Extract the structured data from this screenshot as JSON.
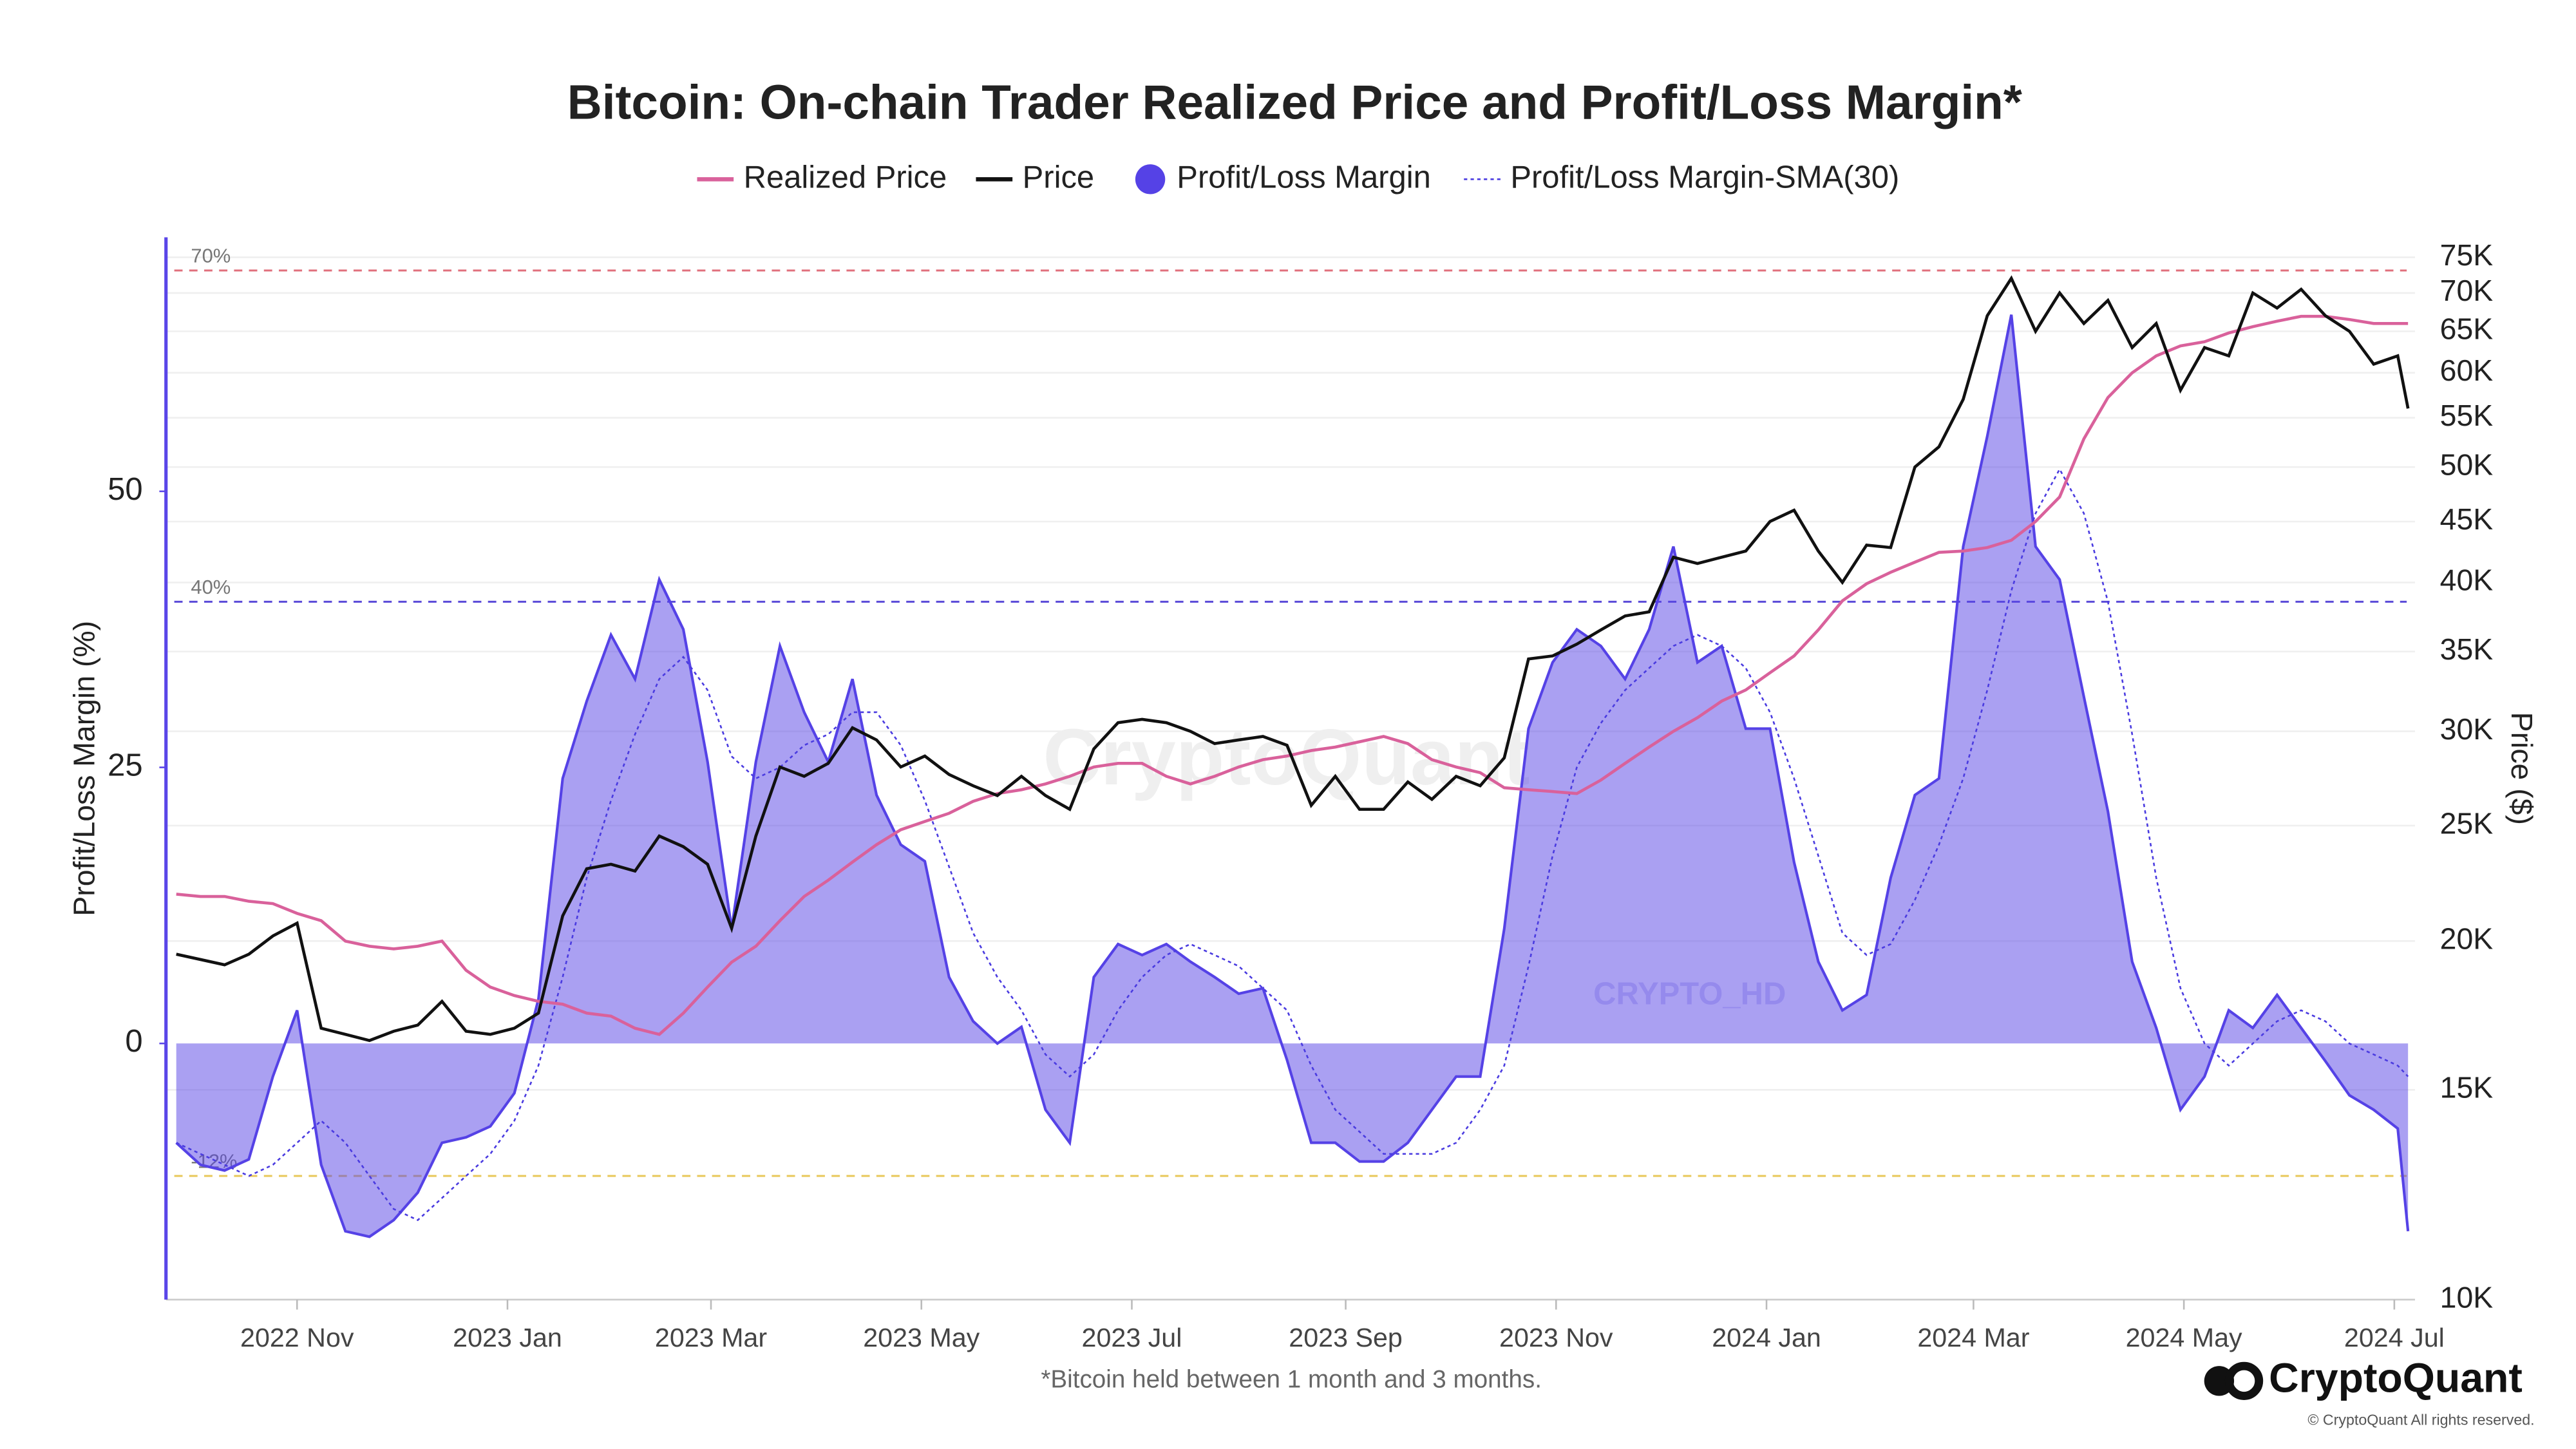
{
  "chart_data": {
    "type": "line",
    "title": "Bitcoin: On-chain Trader Realized Price and Profit/Loss Margin*",
    "footnote": "*Bitcoin held between 1 month and 3 months.",
    "brand": "CryptoQuant",
    "copyright": "© CryptoQuant All rights reserved.",
    "watermarks": [
      "CryptoQuant",
      "CRYPTO_HD"
    ],
    "ylabel": "Profit/Loss Margin (%)",
    "y2label": "Price ($)",
    "ylim": [
      -23.2,
      73
    ],
    "yticks": [
      0,
      25,
      50
    ],
    "y2lim": [
      10000,
      77950
    ],
    "y2log": true,
    "y2ticks": [
      {
        "value": 10000,
        "label": "10K"
      },
      {
        "value": 15000,
        "label": "15K"
      },
      {
        "value": 20000,
        "label": "20K"
      },
      {
        "value": 25000,
        "label": "25K"
      },
      {
        "value": 30000,
        "label": "30K"
      },
      {
        "value": 35000,
        "label": "35K"
      },
      {
        "value": 40000,
        "label": "40K"
      },
      {
        "value": 45000,
        "label": "45K"
      },
      {
        "value": 50000,
        "label": "50K"
      },
      {
        "value": 55000,
        "label": "55K"
      },
      {
        "value": 60000,
        "label": "60K"
      },
      {
        "value": 65000,
        "label": "65K"
      },
      {
        "value": 70000,
        "label": "70K"
      },
      {
        "value": 75000,
        "label": "75K"
      }
    ],
    "grid": true,
    "xlim": [
      "2022-09-24",
      "2024-07-07"
    ],
    "xticks": [
      {
        "value": "2022-11",
        "label": "2022 Nov"
      },
      {
        "value": "2023-01",
        "label": "2023 Jan"
      },
      {
        "value": "2023-03",
        "label": "2023 Mar"
      },
      {
        "value": "2023-05",
        "label": "2023 May"
      },
      {
        "value": "2023-07",
        "label": "2023 Jul"
      },
      {
        "value": "2023-09",
        "label": "2023 Sep"
      },
      {
        "value": "2023-11",
        "label": "2023 Nov"
      },
      {
        "value": "2024-01",
        "label": "2024 Jan"
      },
      {
        "value": "2024-03",
        "label": "2024 Mar"
      },
      {
        "value": "2024-05",
        "label": "2024 May"
      },
      {
        "value": "2024-07",
        "label": "2024 Jul"
      }
    ],
    "ref_lines": [
      {
        "value": 70,
        "label": "70%",
        "color": "#e0707c"
      },
      {
        "value": 40,
        "label": "40%",
        "color": "#5a4ad8"
      },
      {
        "value": -12,
        "label": "-12%",
        "color": "#e8c85a"
      }
    ],
    "x": [
      "2022-09-27",
      "2022-10-04",
      "2022-10-11",
      "2022-10-18",
      "2022-10-25",
      "2022-11-01",
      "2022-11-08",
      "2022-11-15",
      "2022-11-22",
      "2022-11-29",
      "2022-12-06",
      "2022-12-13",
      "2022-12-20",
      "2022-12-27",
      "2023-01-03",
      "2023-01-10",
      "2023-01-17",
      "2023-01-24",
      "2023-01-31",
      "2023-02-07",
      "2023-02-14",
      "2023-02-21",
      "2023-02-28",
      "2023-03-07",
      "2023-03-14",
      "2023-03-21",
      "2023-03-28",
      "2023-04-04",
      "2023-04-11",
      "2023-04-18",
      "2023-04-25",
      "2023-05-02",
      "2023-05-09",
      "2023-05-16",
      "2023-05-23",
      "2023-05-30",
      "2023-06-06",
      "2023-06-13",
      "2023-06-20",
      "2023-06-27",
      "2023-07-04",
      "2023-07-11",
      "2023-07-18",
      "2023-07-25",
      "2023-08-01",
      "2023-08-08",
      "2023-08-15",
      "2023-08-22",
      "2023-08-29",
      "2023-09-05",
      "2023-09-12",
      "2023-09-19",
      "2023-09-26",
      "2023-10-03",
      "2023-10-10",
      "2023-10-17",
      "2023-10-24",
      "2023-10-31",
      "2023-11-07",
      "2023-11-14",
      "2023-11-21",
      "2023-11-28",
      "2023-12-05",
      "2023-12-12",
      "2023-12-19",
      "2023-12-26",
      "2024-01-02",
      "2024-01-09",
      "2024-01-16",
      "2024-01-23",
      "2024-01-30",
      "2024-02-06",
      "2024-02-13",
      "2024-02-20",
      "2024-02-27",
      "2024-03-05",
      "2024-03-12",
      "2024-03-19",
      "2024-03-26",
      "2024-04-02",
      "2024-04-09",
      "2024-04-16",
      "2024-04-23",
      "2024-04-30",
      "2024-05-07",
      "2024-05-14",
      "2024-05-21",
      "2024-05-28",
      "2024-06-04",
      "2024-06-11",
      "2024-06-18",
      "2024-06-25",
      "2024-07-02",
      "2024-07-05"
    ],
    "series": [
      {
        "name": "Realized Price",
        "color": "#d9619b",
        "axis": "y2",
        "kind": "line",
        "values": [
          21900,
          21800,
          21800,
          21600,
          21500,
          21100,
          20800,
          20000,
          19800,
          19700,
          19800,
          20000,
          18900,
          18300,
          18000,
          17800,
          17700,
          17400,
          17300,
          16900,
          16700,
          17400,
          18300,
          19200,
          19800,
          20800,
          21800,
          22500,
          23300,
          24100,
          24800,
          25200,
          25600,
          26200,
          26600,
          26800,
          27100,
          27500,
          28000,
          28200,
          28200,
          27500,
          27100,
          27500,
          28000,
          28400,
          28600,
          28900,
          29100,
          29400,
          29700,
          29300,
          28400,
          28000,
          27700,
          26900,
          26800,
          26700,
          26600,
          27300,
          28200,
          29100,
          30000,
          30800,
          31800,
          32500,
          33600,
          34700,
          36500,
          38600,
          39900,
          40800,
          41600,
          42400,
          42500,
          42800,
          43400,
          45000,
          47200,
          52800,
          57200,
          60000,
          62000,
          63200,
          63700,
          64800,
          65600,
          66300,
          66900,
          66900,
          66500,
          66000,
          66000,
          66000
        ]
      },
      {
        "name": "Price",
        "color": "#111111",
        "axis": "y2",
        "kind": "line",
        "values": [
          19500,
          19300,
          19100,
          19500,
          20200,
          20700,
          16900,
          16700,
          16500,
          16800,
          17000,
          17800,
          16800,
          16700,
          16900,
          17400,
          21000,
          23000,
          23200,
          22900,
          24500,
          24000,
          23200,
          20500,
          24500,
          28000,
          27500,
          28200,
          30200,
          29500,
          28000,
          28600,
          27600,
          27000,
          26500,
          27500,
          26500,
          25800,
          29000,
          30500,
          30700,
          30500,
          30000,
          29300,
          29500,
          29700,
          29200,
          26000,
          27500,
          25800,
          25800,
          27200,
          26300,
          27500,
          27000,
          28500,
          34500,
          34700,
          35500,
          36500,
          37500,
          37800,
          42000,
          41500,
          42000,
          42500,
          45000,
          46000,
          42500,
          40000,
          43000,
          42800,
          50000,
          52000,
          57000,
          67000,
          72000,
          65000,
          70000,
          66000,
          69000,
          63000,
          66000,
          58000,
          63000,
          62000,
          70000,
          68000,
          70500,
          67000,
          65000,
          61000,
          62000,
          56000
        ]
      },
      {
        "name": "Profit/Loss Margin",
        "color": "#5542e6",
        "axis": "y",
        "kind": "area",
        "values": [
          -9,
          -11,
          -11.5,
          -10.5,
          -3,
          3,
          -11,
          -17,
          -17.5,
          -16,
          -13.5,
          -9,
          -8.5,
          -7.5,
          -4.5,
          4,
          24,
          31,
          37,
          33,
          42,
          37.5,
          25.5,
          10.4,
          25.5,
          36,
          30,
          25.5,
          33,
          22.5,
          18,
          16.5,
          6,
          2,
          0,
          1.5,
          -6,
          -9,
          6,
          9,
          8,
          9,
          7.4,
          6,
          4.5,
          5,
          -1.5,
          -9,
          -9,
          -10.7,
          -10.7,
          -9,
          -6,
          -3,
          -3,
          10.4,
          28.5,
          34.5,
          37.5,
          36,
          33,
          37.5,
          45,
          34.5,
          36,
          28.5,
          28.5,
          16.4,
          7.4,
          3,
          4.4,
          15,
          22.5,
          24,
          45,
          55,
          66,
          45,
          42,
          31.4,
          21,
          7.4,
          1.4,
          -6,
          -3,
          3,
          1.4,
          4.4,
          1.4,
          -1.6,
          -4.7,
          -6,
          -7.7,
          -17
        ]
      },
      {
        "name": "Profit/Loss Margin-SMA(30)",
        "color": "#4a3be0",
        "axis": "y",
        "kind": "dashed-line",
        "values": [
          -9,
          -10,
          -11,
          -12,
          -11,
          -9,
          -7,
          -9,
          -12,
          -15,
          -16,
          -14,
          -12,
          -10,
          -7,
          -2,
          6,
          15,
          22,
          28,
          33,
          35,
          32,
          26,
          24,
          25,
          27,
          28,
          30,
          30,
          27,
          22,
          16,
          10,
          6,
          3,
          -1,
          -3,
          -1,
          3,
          6,
          8,
          9,
          8,
          7,
          5,
          3,
          -2,
          -6,
          -8,
          -10,
          -10,
          -10,
          -9,
          -6,
          -2,
          7,
          17,
          25,
          29,
          32,
          34,
          36,
          37,
          36,
          34,
          30,
          24,
          17,
          10,
          8,
          9,
          13,
          18,
          24,
          32,
          41,
          48,
          52,
          48,
          40,
          28,
          15,
          5,
          0,
          -2,
          0,
          2,
          3,
          2,
          0,
          -1,
          -2,
          -3
        ]
      }
    ]
  }
}
